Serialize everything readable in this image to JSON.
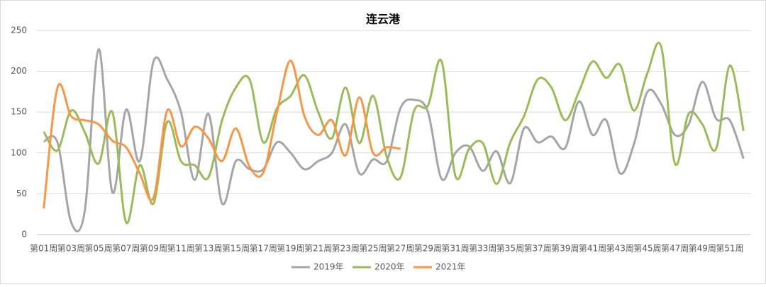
{
  "chart_data": {
    "type": "line",
    "title": "连云港",
    "categories": [
      "第01周",
      null,
      "第03周",
      null,
      "第05周",
      null,
      "第07周",
      null,
      "第09周",
      null,
      "第11周",
      null,
      "第13周",
      null,
      "第15周",
      null,
      "第17周",
      null,
      "第19周",
      null,
      "第21周",
      null,
      "第23周",
      null,
      "第25周",
      null,
      "第27周",
      null,
      "第29周",
      null,
      "第31周",
      null,
      "第33周",
      null,
      "第35周",
      null,
      "第37周",
      null,
      "第39周",
      null,
      "第41周",
      null,
      "第43周",
      null,
      "第45周",
      null,
      "第47周",
      null,
      "第49周",
      null,
      "第51周",
      null
    ],
    "series": [
      {
        "name": "2019年",
        "color": "#a5a5a5",
        "values": [
          114,
          113,
          15,
          30,
          227,
          52,
          153,
          90,
          212,
          190,
          150,
          67,
          148,
          38,
          90,
          80,
          80,
          113,
          100,
          80,
          90,
          100,
          135,
          75,
          92,
          90,
          155,
          165,
          150,
          68,
          100,
          108,
          78,
          102,
          63,
          130,
          113,
          120,
          106,
          163,
          122,
          140,
          75,
          110,
          175,
          160,
          122,
          135,
          187,
          142,
          140,
          93
        ]
      },
      {
        "name": "2020年",
        "color": "#9bbb59",
        "values": [
          126,
          103,
          152,
          125,
          87,
          150,
          15,
          85,
          38,
          138,
          90,
          85,
          70,
          140,
          180,
          190,
          113,
          155,
          170,
          195,
          150,
          118,
          180,
          112,
          170,
          95,
          70,
          152,
          158,
          212,
          72,
          105,
          112,
          62,
          113,
          145,
          190,
          180,
          140,
          175,
          212,
          192,
          208,
          152,
          198,
          230,
          87,
          148,
          135,
          105,
          207,
          127
        ]
      },
      {
        "name": "2021年",
        "color": "#f79646",
        "values": [
          32,
          180,
          145,
          140,
          135,
          115,
          107,
          75,
          45,
          152,
          108,
          132,
          118,
          90,
          130,
          83,
          76,
          150,
          213,
          145,
          122,
          140,
          97,
          168,
          100,
          107,
          105,
          null,
          null,
          null,
          null,
          null,
          null,
          null,
          null,
          null,
          null,
          null,
          null,
          null,
          null,
          null,
          null,
          null,
          null,
          null,
          null,
          null,
          null,
          null,
          null,
          null
        ]
      }
    ],
    "ylim": [
      0,
      250
    ],
    "yticks": [
      0,
      50,
      100,
      150,
      200,
      250
    ],
    "grid": true,
    "legend": "bottom"
  }
}
